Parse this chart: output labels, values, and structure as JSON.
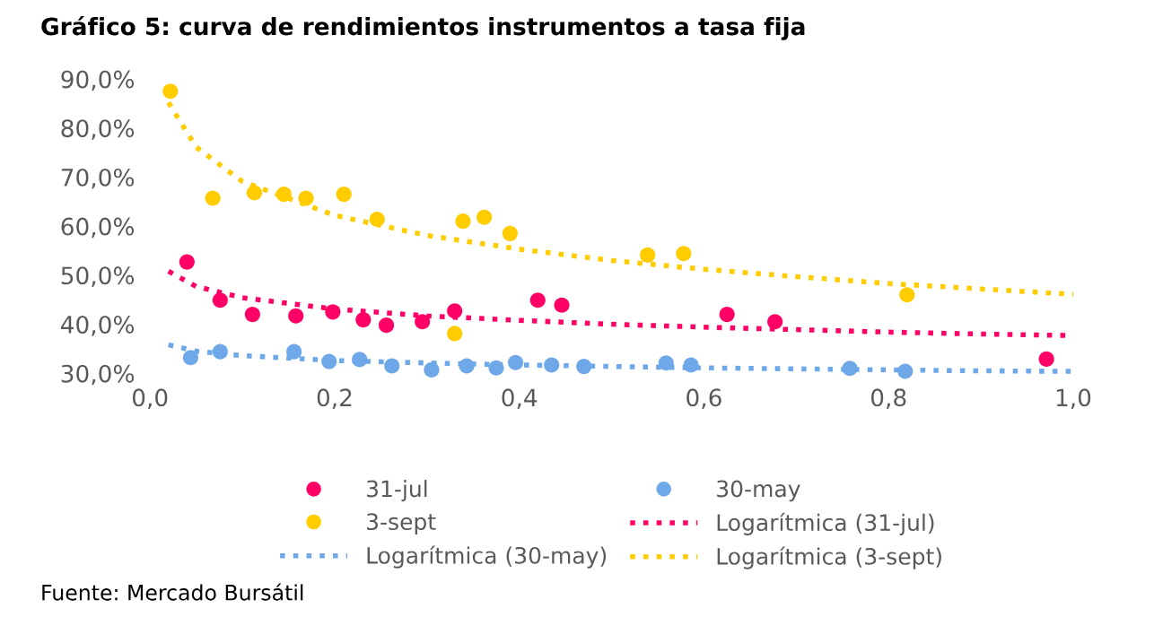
{
  "chart_data": {
    "type": "scatter",
    "title": "Gráfico 5: curva de rendimientos instrumentos a tasa fija",
    "xlim": [
      0,
      1
    ],
    "xticks": [
      {
        "value": 0,
        "label": "0,0"
      },
      {
        "value": 0.2,
        "label": "0,2"
      },
      {
        "value": 0.4,
        "label": "0,4"
      },
      {
        "value": 0.6,
        "label": "0,6"
      },
      {
        "value": 0.8,
        "label": "0,8"
      },
      {
        "value": 1,
        "label": "1,0"
      }
    ],
    "ylim": [
      30,
      90
    ],
    "yticks": [
      {
        "value": 30,
        "label": "30,0%"
      },
      {
        "value": 40,
        "label": "40,0%"
      },
      {
        "value": 50,
        "label": "50,0%"
      },
      {
        "value": 60,
        "label": "60,0%"
      },
      {
        "value": 70,
        "label": "70,0%"
      },
      {
        "value": 80,
        "label": "80,0%"
      },
      {
        "value": 90,
        "label": "90,0%"
      }
    ],
    "grid": false,
    "legend": "bottom",
    "annotations": [
      "Fuente: Mercado Bursátil"
    ],
    "series": [
      {
        "name": "31-jul",
        "marker": "circle",
        "color": "#ff0066",
        "x": [
          0.04,
          0.076,
          0.111,
          0.158,
          0.198,
          0.231,
          0.256,
          0.295,
          0.33,
          0.42,
          0.446,
          0.625,
          0.677,
          0.971
        ],
        "values": [
          52.7,
          44.9,
          42.0,
          41.7,
          42.5,
          40.9,
          39.8,
          40.5,
          42.7,
          44.9,
          43.9,
          42.0,
          40.5,
          32.9
        ]
      },
      {
        "name": "30-may",
        "marker": "circle",
        "color": "#6fa8e8",
        "x": [
          0.044,
          0.076,
          0.156,
          0.194,
          0.227,
          0.262,
          0.305,
          0.343,
          0.375,
          0.396,
          0.435,
          0.47,
          0.559,
          0.586,
          0.758,
          0.818
        ],
        "values": [
          33.2,
          34.4,
          34.4,
          32.4,
          32.8,
          31.5,
          30.7,
          31.5,
          31.1,
          32.2,
          31.7,
          31.4,
          32.1,
          31.7,
          31.0,
          30.4
        ]
      },
      {
        "name": "3-sept",
        "marker": "circle",
        "color": "#ffcc00",
        "x": [
          0.022,
          0.068,
          0.113,
          0.145,
          0.169,
          0.21,
          0.246,
          0.33,
          0.339,
          0.362,
          0.39,
          0.539,
          0.578,
          0.82
        ],
        "values": [
          87.5,
          65.7,
          66.8,
          66.5,
          65.7,
          66.5,
          61.4,
          38.1,
          61.0,
          61.8,
          58.5,
          54.1,
          54.4,
          46.0
        ]
      },
      {
        "name": "Logarítmica (31-jul)",
        "type": "line",
        "line_style": "dotted",
        "color": "#ff0066",
        "x": [
          0.02,
          0.05,
          0.1,
          0.2,
          0.3,
          0.4,
          0.5,
          0.6,
          0.7,
          0.8,
          0.9,
          1.0
        ],
        "values": [
          50.8,
          47.7,
          45.4,
          43.1,
          41.7,
          40.8,
          40.0,
          39.4,
          38.9,
          38.4,
          38.0,
          37.7
        ]
      },
      {
        "name": "Logarítmica (30-may)",
        "type": "line",
        "line_style": "dotted",
        "color": "#6fa8e8",
        "x": [
          0.02,
          0.05,
          0.1,
          0.2,
          0.3,
          0.4,
          0.5,
          0.6,
          0.7,
          0.8,
          0.9,
          1.0
        ],
        "values": [
          35.8,
          34.5,
          33.6,
          32.6,
          32.1,
          31.7,
          31.4,
          31.1,
          30.9,
          30.7,
          30.5,
          30.4
        ]
      },
      {
        "name": "Logarítmica (3-sept)",
        "type": "line",
        "line_style": "dotted",
        "color": "#ffcc00",
        "x": [
          0.02,
          0.05,
          0.1,
          0.2,
          0.3,
          0.4,
          0.5,
          0.6,
          0.7,
          0.8,
          0.9,
          1.0
        ],
        "values": [
          85.2,
          76.1,
          69.1,
          62.2,
          58.1,
          55.3,
          53.0,
          51.2,
          49.7,
          48.3,
          47.2,
          46.1
        ]
      }
    ]
  }
}
